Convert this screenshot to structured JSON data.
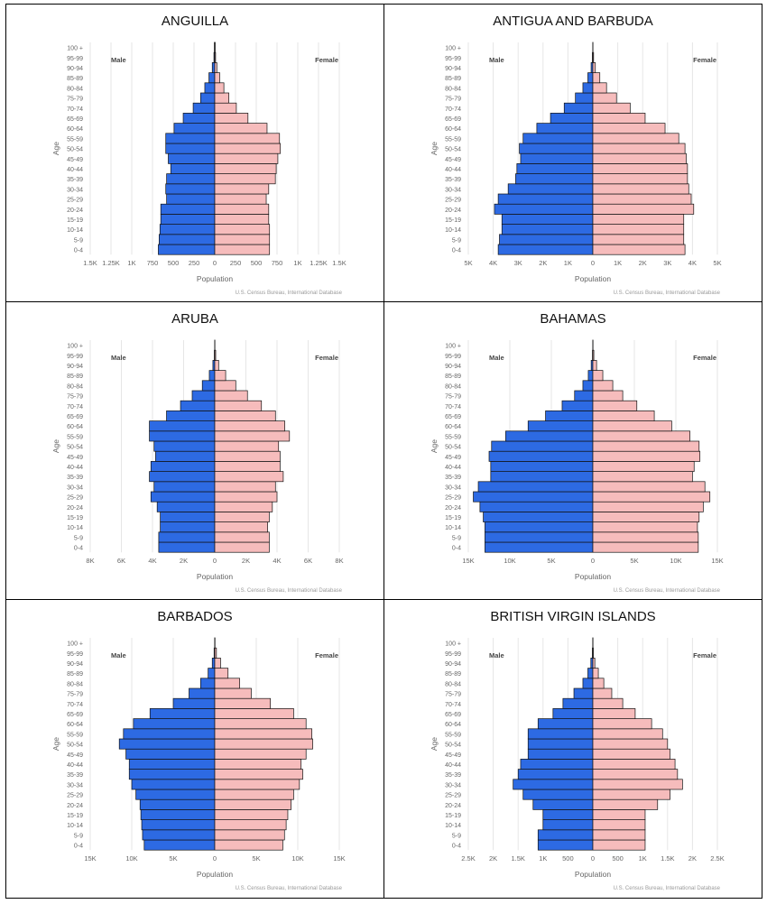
{
  "chart_data": [
    {
      "type": "bar",
      "title": "ANGUILLA",
      "xlabel": "Population",
      "ylabel": "Age",
      "legend": [
        "Male",
        "Female"
      ],
      "source": "U.S. Census Bureau, International Database",
      "xlim": [
        -1500,
        1500
      ],
      "ticks": [
        -1500,
        -1250,
        -1000,
        -750,
        -500,
        -250,
        0,
        250,
        500,
        750,
        1000,
        1250,
        1500
      ],
      "tick_labels": [
        "1.5K",
        "1.25K",
        "1K",
        "750",
        "500",
        "250",
        "0",
        "250",
        "500",
        "750",
        "1K",
        "1.25K",
        "1.5K"
      ],
      "categories": [
        "0-4",
        "5-9",
        "10-14",
        "15-19",
        "20-24",
        "25-29",
        "30-34",
        "35-39",
        "40-44",
        "45-49",
        "50-54",
        "55-59",
        "60-64",
        "65-69",
        "70-74",
        "75-79",
        "80-84",
        "85-89",
        "90-94",
        "95-99",
        "100 +"
      ],
      "series": [
        {
          "name": "Male",
          "values": [
            680,
            670,
            660,
            650,
            650,
            580,
            590,
            580,
            530,
            560,
            590,
            590,
            490,
            380,
            260,
            170,
            120,
            70,
            30,
            10,
            5
          ]
        },
        {
          "name": "Female",
          "values": [
            660,
            660,
            660,
            650,
            650,
            620,
            650,
            730,
            740,
            760,
            790,
            780,
            630,
            400,
            260,
            170,
            110,
            60,
            25,
            10,
            5
          ]
        }
      ]
    },
    {
      "type": "bar",
      "title": "ANTIGUA AND BARBUDA",
      "xlabel": "Population",
      "ylabel": "Age",
      "legend": [
        "Male",
        "Female"
      ],
      "source": "U.S. Census Bureau, International Database",
      "xlim": [
        -5000,
        5000
      ],
      "ticks": [
        -5000,
        -4000,
        -3000,
        -2000,
        -1000,
        0,
        1000,
        2000,
        3000,
        4000,
        5000
      ],
      "tick_labels": [
        "5K",
        "4K",
        "3K",
        "2K",
        "1K",
        "0",
        "1K",
        "2K",
        "3K",
        "4K",
        "5K"
      ],
      "categories": [
        "0-4",
        "5-9",
        "10-14",
        "15-19",
        "20-24",
        "25-29",
        "30-34",
        "35-39",
        "40-44",
        "45-49",
        "50-54",
        "55-59",
        "60-64",
        "65-69",
        "70-74",
        "75-79",
        "80-84",
        "85-89",
        "90-94",
        "95-99",
        "100 +"
      ],
      "series": [
        {
          "name": "Male",
          "values": [
            3800,
            3750,
            3650,
            3650,
            3950,
            3800,
            3400,
            3100,
            3050,
            2900,
            2950,
            2800,
            2250,
            1700,
            1150,
            700,
            400,
            200,
            70,
            20,
            5
          ]
        },
        {
          "name": "Female",
          "values": [
            3700,
            3650,
            3650,
            3650,
            4050,
            3950,
            3850,
            3800,
            3800,
            3750,
            3700,
            3450,
            2900,
            2100,
            1500,
            950,
            550,
            280,
            100,
            30,
            5
          ]
        }
      ]
    },
    {
      "type": "bar",
      "title": "ARUBA",
      "xlabel": "Population",
      "ylabel": "Age",
      "legend": [
        "Male",
        "Female"
      ],
      "source": "U.S. Census Bureau, International Database",
      "xlim": [
        -8000,
        8000
      ],
      "ticks": [
        -8000,
        -6000,
        -4000,
        -2000,
        0,
        2000,
        4000,
        6000,
        8000
      ],
      "tick_labels": [
        "8K",
        "6K",
        "4K",
        "2K",
        "0",
        "2K",
        "4K",
        "6K",
        "8K"
      ],
      "categories": [
        "0-4",
        "5-9",
        "10-14",
        "15-19",
        "20-24",
        "25-29",
        "30-34",
        "35-39",
        "40-44",
        "45-49",
        "50-54",
        "55-59",
        "60-64",
        "65-69",
        "70-74",
        "75-79",
        "80-84",
        "85-89",
        "90-94",
        "95-99",
        "100 +"
      ],
      "series": [
        {
          "name": "Male",
          "values": [
            3600,
            3600,
            3500,
            3500,
            3700,
            4100,
            3900,
            4200,
            4100,
            3800,
            3900,
            4200,
            4200,
            3100,
            2200,
            1450,
            800,
            350,
            120,
            30,
            5
          ]
        },
        {
          "name": "Female",
          "values": [
            3500,
            3500,
            3400,
            3500,
            3700,
            4000,
            3900,
            4400,
            4200,
            4200,
            4100,
            4800,
            4500,
            3900,
            3000,
            2100,
            1350,
            700,
            250,
            60,
            10
          ]
        }
      ]
    },
    {
      "type": "bar",
      "title": "BAHAMAS",
      "xlabel": "Population",
      "ylabel": "Age",
      "legend": [
        "Male",
        "Female"
      ],
      "source": "U.S. Census Bureau, International Database",
      "xlim": [
        -15000,
        15000
      ],
      "ticks": [
        -15000,
        -10000,
        -5000,
        0,
        5000,
        10000,
        15000
      ],
      "tick_labels": [
        "15K",
        "10K",
        "5K",
        "0",
        "5K",
        "10K",
        "15K"
      ],
      "categories": [
        "0-4",
        "5-9",
        "10-14",
        "15-19",
        "20-24",
        "25-29",
        "30-34",
        "35-39",
        "40-44",
        "45-49",
        "50-54",
        "55-59",
        "60-64",
        "65-69",
        "70-74",
        "75-79",
        "80-84",
        "85-89",
        "90-94",
        "95-99",
        "100 +"
      ],
      "series": [
        {
          "name": "Male",
          "values": [
            13000,
            13000,
            13000,
            13200,
            13600,
            14400,
            13800,
            12300,
            12300,
            12500,
            12200,
            10500,
            7800,
            5700,
            3700,
            2200,
            1200,
            550,
            200,
            50,
            10
          ]
        },
        {
          "name": "Female",
          "values": [
            12700,
            12700,
            12600,
            12800,
            13300,
            14100,
            13500,
            12000,
            12200,
            12900,
            12800,
            11700,
            9500,
            7400,
            5300,
            3600,
            2400,
            1200,
            450,
            120,
            20
          ]
        }
      ]
    },
    {
      "type": "bar",
      "title": "BARBADOS",
      "xlabel": "Population",
      "ylabel": "Age",
      "legend": [
        "Male",
        "Female"
      ],
      "source": "U.S. Census Bureau, International Database",
      "xlim": [
        -15000,
        15000
      ],
      "ticks": [
        -15000,
        -10000,
        -5000,
        0,
        5000,
        10000,
        15000
      ],
      "tick_labels": [
        "15K",
        "10K",
        "5K",
        "0",
        "5K",
        "10K",
        "15K"
      ],
      "categories": [
        "0-4",
        "5-9",
        "10-14",
        "15-19",
        "20-24",
        "25-29",
        "30-34",
        "35-39",
        "40-44",
        "45-49",
        "50-54",
        "55-59",
        "60-64",
        "65-69",
        "70-74",
        "75-79",
        "80-84",
        "85-89",
        "90-94",
        "95-99",
        "100 +"
      ],
      "series": [
        {
          "name": "Male",
          "values": [
            8500,
            8700,
            8800,
            8900,
            9000,
            9500,
            10000,
            10300,
            10300,
            10700,
            11500,
            11000,
            9800,
            7800,
            5000,
            3100,
            1700,
            800,
            300,
            80,
            15
          ]
        },
        {
          "name": "Female",
          "values": [
            8200,
            8400,
            8600,
            8800,
            9200,
            9500,
            10200,
            10600,
            10400,
            11000,
            11800,
            11700,
            11000,
            9500,
            6700,
            4400,
            3000,
            1600,
            700,
            200,
            30
          ]
        }
      ]
    },
    {
      "type": "bar",
      "title": "BRITISH VIRGIN ISLANDS",
      "xlabel": "Population",
      "ylabel": "Age",
      "legend": [
        "Male",
        "Female"
      ],
      "source": "U.S. Census Bureau, International Database",
      "xlim": [
        -2500,
        2500
      ],
      "ticks": [
        -2500,
        -2000,
        -1500,
        -1000,
        -500,
        0,
        500,
        1000,
        1500,
        2000,
        2500
      ],
      "tick_labels": [
        "2.5K",
        "2K",
        "1.5K",
        "1K",
        "500",
        "0",
        "500",
        "1K",
        "1.5K",
        "2K",
        "2.5K"
      ],
      "categories": [
        "0-4",
        "5-9",
        "10-14",
        "15-19",
        "20-24",
        "25-29",
        "30-34",
        "35-39",
        "40-44",
        "45-49",
        "50-54",
        "55-59",
        "60-64",
        "65-69",
        "70-74",
        "75-79",
        "80-84",
        "85-89",
        "90-94",
        "95-99",
        "100 +"
      ],
      "series": [
        {
          "name": "Male",
          "values": [
            1100,
            1100,
            1000,
            1000,
            1200,
            1400,
            1600,
            1500,
            1450,
            1300,
            1300,
            1300,
            1100,
            800,
            600,
            380,
            200,
            100,
            40,
            10,
            3
          ]
        },
        {
          "name": "Female",
          "values": [
            1050,
            1050,
            1050,
            1050,
            1300,
            1550,
            1800,
            1700,
            1650,
            1550,
            1500,
            1400,
            1180,
            850,
            600,
            380,
            220,
            110,
            40,
            10,
            3
          ]
        }
      ]
    }
  ],
  "style": {
    "male_color": "#2d6ae3",
    "female_color": "#f6bcbc",
    "outline_color": "#111111",
    "grid_color": "#e6e6e6",
    "text_color": "#666666"
  }
}
